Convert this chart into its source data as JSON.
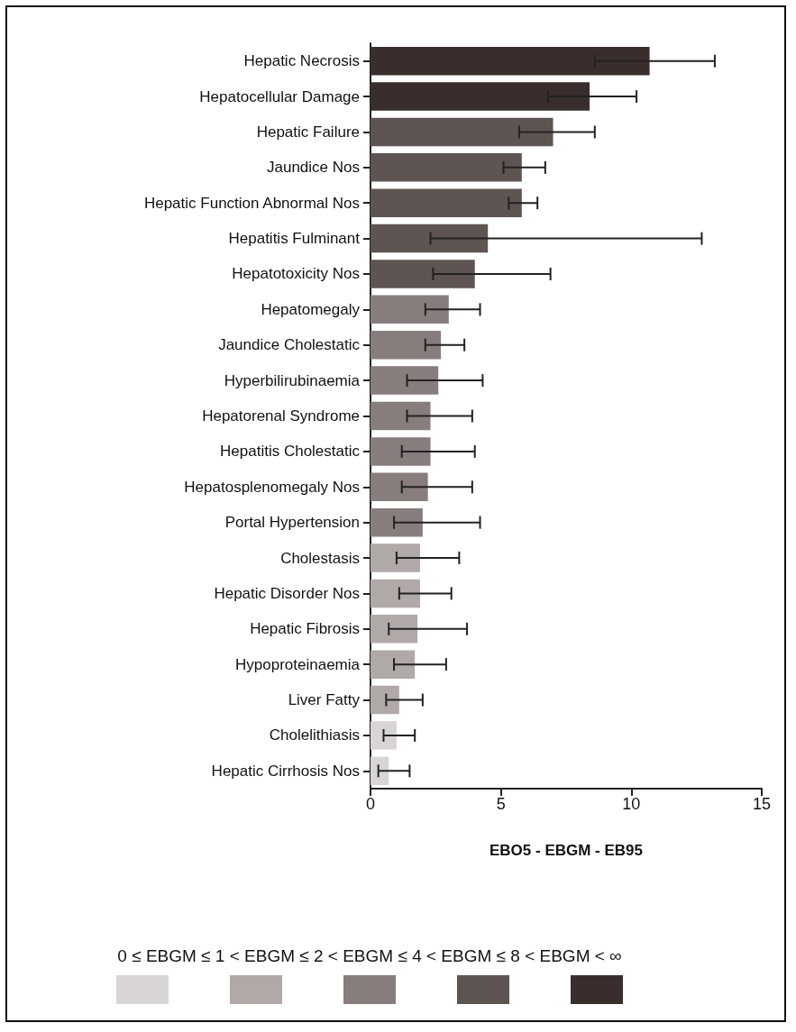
{
  "chart_data": {
    "type": "bar",
    "orientation": "horizontal",
    "xlabel": "EBO5 - EBGM - EB95",
    "legend_title": "0 ≤ EBGM ≤ 1 < EBGM ≤ 2 < EBGM ≤ 4 < EBGM ≤ 8 < EBGM < ∞",
    "categories": [
      "Hepatic Necrosis",
      "Hepatocellular Damage",
      "Hepatic Failure",
      "Jaundice Nos",
      "Hepatic Function Abnormal Nos",
      "Hepatitis Fulminant",
      "Hepatotoxicity Nos",
      "Hepatomegaly",
      "Jaundice Cholestatic",
      "Hyperbilirubinaemia",
      "Hepatorenal Syndrome",
      "Hepatitis Cholestatic",
      "Hepatosplenomegaly Nos",
      "Portal Hypertension",
      "Cholestasis",
      "Hepatic Disorder Nos",
      "Hepatic Fibrosis",
      "Hypoproteinaemia",
      "Liver Fatty",
      "Cholelithiasis",
      "Hepatic Cirrhosis Nos"
    ],
    "values": [
      10.7,
      8.4,
      7.0,
      5.8,
      5.8,
      4.5,
      4.0,
      3.0,
      2.7,
      2.6,
      2.3,
      2.3,
      2.2,
      2.0,
      1.9,
      1.9,
      1.8,
      1.7,
      1.1,
      1.0,
      0.7
    ],
    "errors": [
      [
        8.6,
        13.2
      ],
      [
        6.8,
        10.2
      ],
      [
        5.7,
        8.6
      ],
      [
        5.1,
        6.7
      ],
      [
        5.3,
        6.4
      ],
      [
        2.3,
        12.7
      ],
      [
        2.4,
        6.9
      ],
      [
        2.1,
        4.2
      ],
      [
        2.1,
        3.6
      ],
      [
        1.4,
        4.3
      ],
      [
        1.4,
        3.9
      ],
      [
        1.2,
        4.0
      ],
      [
        1.2,
        3.9
      ],
      [
        0.9,
        4.2
      ],
      [
        1.0,
        3.4
      ],
      [
        1.1,
        3.1
      ],
      [
        0.7,
        3.7
      ],
      [
        0.9,
        2.9
      ],
      [
        0.6,
        2.0
      ],
      [
        0.5,
        1.7
      ],
      [
        0.3,
        1.5
      ]
    ],
    "colors": [
      "#3a2e2d",
      "#3a2e2d",
      "#5e5452",
      "#5e5452",
      "#5e5452",
      "#5e5452",
      "#5e5452",
      "#877d7c",
      "#877d7c",
      "#877d7c",
      "#877d7c",
      "#877d7c",
      "#877d7c",
      "#877d7c",
      "#b0a9a8",
      "#b0a9a8",
      "#b0a9a8",
      "#b0a9a8",
      "#b0a9a8",
      "#d9d5d5",
      "#d9d5d5"
    ],
    "xlim": [
      0,
      15
    ],
    "xticks": [
      0,
      5,
      10,
      15
    ],
    "grid": false
  }
}
